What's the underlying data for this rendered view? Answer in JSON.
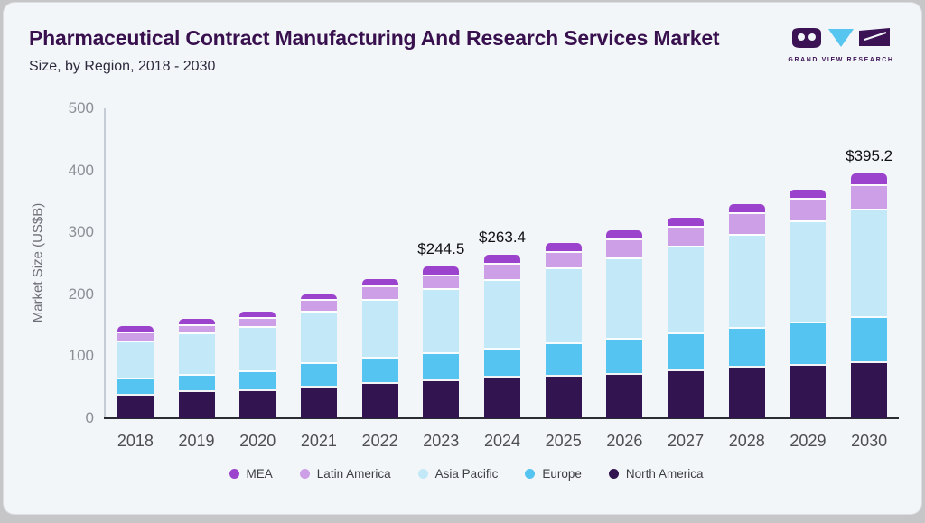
{
  "header": {
    "title": "Pharmaceutical Contract Manufacturing And Research Services Market",
    "subtitle": "Size, by Region, 2018 - 2030",
    "logo_text": "GRAND VIEW RESEARCH"
  },
  "colors": {
    "title": "#38104e",
    "logo_purple": "#3b1254",
    "logo_cyan": "#56c5f0",
    "axis_line": "#c5ccd3",
    "baseline": "#2b2b33",
    "card_background": "#f3f6f9"
  },
  "chart_data": {
    "type": "bar",
    "stacked": true,
    "title": "Pharmaceutical Contract Manufacturing And Research Services Market Size, by Region, 2018 - 2030",
    "xlabel": "",
    "ylabel": "Market Size (US$B)",
    "ylim": [
      0,
      500
    ],
    "yticks": [
      0,
      100,
      200,
      300,
      400,
      500
    ],
    "grid": false,
    "legend_position": "bottom",
    "categories": [
      "2018",
      "2019",
      "2020",
      "2021",
      "2022",
      "2023",
      "2024",
      "2025",
      "2026",
      "2027",
      "2028",
      "2029",
      "2030"
    ],
    "series": [
      {
        "name": "North America",
        "color": "#321450",
        "values": [
          40,
          45,
          46,
          52,
          58,
          62,
          68,
          70,
          73,
          79,
          85,
          87,
          92
        ]
      },
      {
        "name": "Europe",
        "color": "#55c4f0",
        "values": [
          26,
          27,
          31,
          38,
          41,
          45,
          46,
          53,
          56,
          59,
          62,
          69,
          73
        ]
      },
      {
        "name": "Asia Pacific",
        "color": "#c3e9f8",
        "values": [
          60,
          66,
          72,
          84,
          93,
          103,
          111,
          120,
          131,
          141,
          151,
          163,
          173
        ]
      },
      {
        "name": "Latin America",
        "color": "#cd9fe6",
        "values": [
          14,
          14,
          14,
          18,
          22,
          22,
          26,
          27,
          30,
          32,
          34,
          36,
          40
        ]
      },
      {
        "name": "MEA",
        "color": "#9c43cd",
        "values": [
          8,
          8,
          9,
          8,
          11,
          12.5,
          12.4,
          13,
          13,
          12,
          13,
          14,
          17.2
        ]
      }
    ],
    "totals": [
      148,
      160,
      172,
      200,
      225,
      244.5,
      263.4,
      283,
      303,
      323,
      345,
      369,
      395.2
    ],
    "annotations": [
      {
        "year": "2023",
        "label": "$244.5"
      },
      {
        "year": "2024",
        "label": "$263.4"
      },
      {
        "year": "2030",
        "label": "$395.2"
      }
    ],
    "legend": [
      "MEA",
      "Latin America",
      "Asia Pacific",
      "Europe",
      "North America"
    ]
  }
}
